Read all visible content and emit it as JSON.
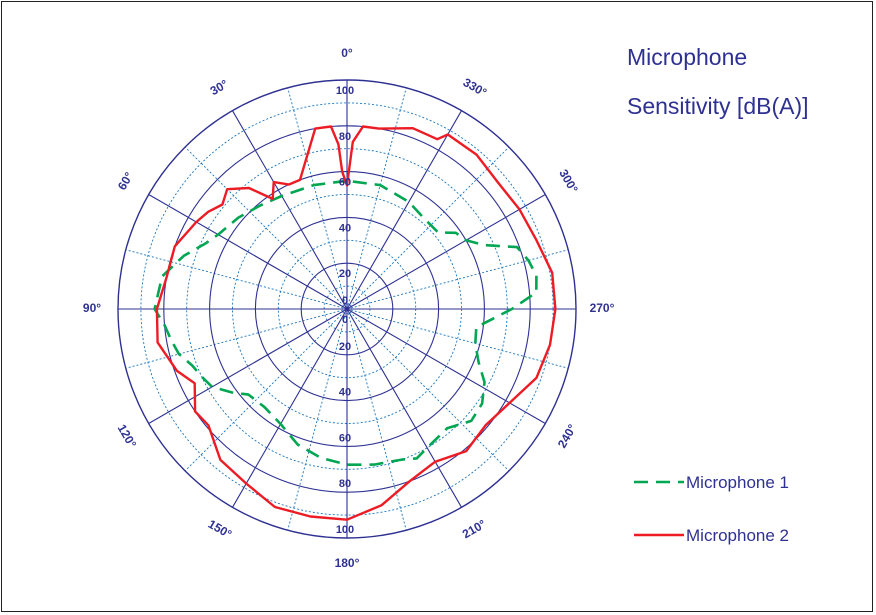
{
  "chart_data": {
    "type": "polar-line",
    "title": [
      "Microphone",
      "Sensitivity [dB(A)]"
    ],
    "angle_direction": "counterclockwise",
    "zero_at": "top",
    "angle_labels": [
      "0°",
      "30°",
      "60°",
      "90°",
      "120°",
      "150°",
      "180°",
      "210°",
      "240°",
      "270°",
      "300°",
      "330°"
    ],
    "upper_radial_labels": [
      "0",
      "20",
      "40",
      "60",
      "80",
      "100"
    ],
    "lower_radial_labels": [
      "0",
      "20",
      "40",
      "60",
      "80",
      "100"
    ],
    "rlim": [
      0,
      100
    ],
    "series": [
      {
        "name": "Microphone 1",
        "color": "#00a651",
        "style": "dashed",
        "points": [
          [
            0,
            56
          ],
          [
            15,
            56
          ],
          [
            30,
            57
          ],
          [
            40,
            59
          ],
          [
            50,
            62
          ],
          [
            60,
            65
          ],
          [
            65,
            68
          ],
          [
            72,
            75
          ],
          [
            80,
            82
          ],
          [
            90,
            84
          ],
          [
            95,
            80
          ],
          [
            100,
            78
          ],
          [
            105,
            76
          ],
          [
            110,
            72
          ],
          [
            115,
            70
          ],
          [
            120,
            68
          ],
          [
            126,
            62
          ],
          [
            131,
            57
          ],
          [
            140,
            56
          ],
          [
            150,
            58
          ],
          [
            160,
            63
          ],
          [
            170,
            66
          ],
          [
            180,
            68
          ],
          [
            190,
            69
          ],
          [
            200,
            70
          ],
          [
            205,
            72
          ],
          [
            210,
            70
          ],
          [
            220,
            68
          ],
          [
            228,
            73
          ],
          [
            235,
            72
          ],
          [
            242,
            68
          ],
          [
            248,
            62
          ],
          [
            255,
            58
          ],
          [
            262,
            57
          ],
          [
            270,
            72
          ],
          [
            275,
            83
          ],
          [
            280,
            84
          ],
          [
            285,
            82
          ],
          [
            290,
            79
          ],
          [
            295,
            66
          ],
          [
            300,
            60
          ],
          [
            305,
            58
          ],
          [
            310,
            52
          ],
          [
            320,
            52
          ],
          [
            330,
            54
          ],
          [
            345,
            56
          ],
          [
            360,
            56
          ]
        ]
      },
      {
        "name": "Microphone 2",
        "color": "#ed1c24",
        "style": "solid",
        "points": [
          [
            0,
            54
          ],
          [
            2,
            60
          ],
          [
            3,
            72
          ],
          [
            5,
            80
          ],
          [
            10,
            80
          ],
          [
            20,
            60
          ],
          [
            25,
            60
          ],
          [
            30,
            64
          ],
          [
            34,
            58
          ],
          [
            39,
            68
          ],
          [
            45,
            74
          ],
          [
            50,
            71
          ],
          [
            55,
            74
          ],
          [
            60,
            76
          ],
          [
            70,
            80
          ],
          [
            80,
            80
          ],
          [
            90,
            83
          ],
          [
            100,
            84
          ],
          [
            110,
            79
          ],
          [
            116,
            74
          ],
          [
            124,
            80
          ],
          [
            130,
            79
          ],
          [
            140,
            86
          ],
          [
            150,
            88
          ],
          [
            160,
            92
          ],
          [
            170,
            92
          ],
          [
            180,
            92
          ],
          [
            190,
            87
          ],
          [
            200,
            80
          ],
          [
            210,
            77
          ],
          [
            220,
            81
          ],
          [
            230,
            79
          ],
          [
            240,
            82
          ],
          [
            250,
            88
          ],
          [
            260,
            90
          ],
          [
            270,
            91
          ],
          [
            280,
            91
          ],
          [
            290,
            88
          ],
          [
            300,
            87
          ],
          [
            310,
            86
          ],
          [
            320,
            88
          ],
          [
            330,
            88
          ],
          [
            332,
            84
          ],
          [
            340,
            84
          ],
          [
            350,
            80
          ],
          [
            355,
            80
          ],
          [
            358,
            73
          ],
          [
            360,
            54
          ]
        ]
      }
    ]
  }
}
